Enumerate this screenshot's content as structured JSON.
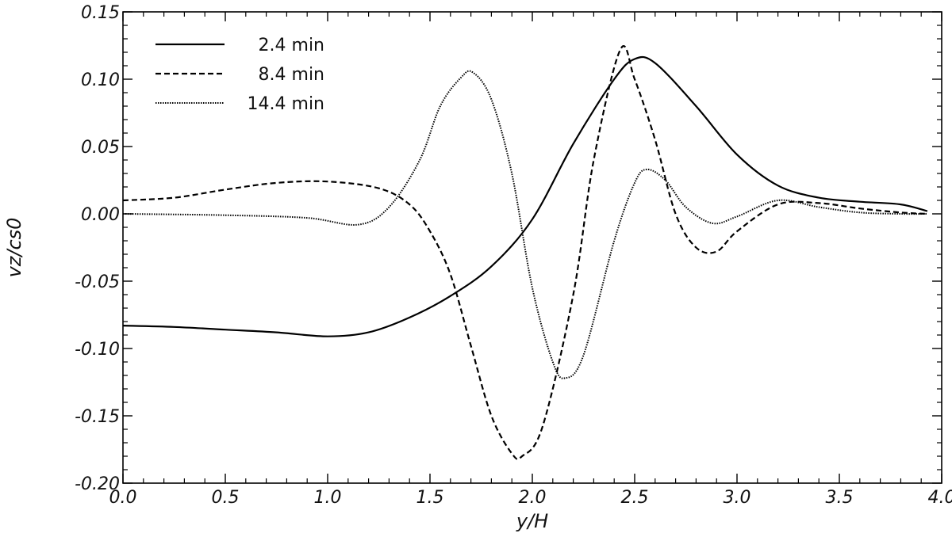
{
  "chart_data": {
    "type": "line",
    "title": "",
    "xlabel": "y/H",
    "ylabel": "vz/cs0",
    "xlim": [
      0.0,
      4.0
    ],
    "ylim": [
      -0.2,
      0.15
    ],
    "xticks": [
      "0.0",
      "0.5",
      "1.0",
      "1.5",
      "2.0",
      "2.5",
      "3.0",
      "3.5",
      "4.0"
    ],
    "yticks": [
      "-0.20",
      "-0.15",
      "-0.10",
      "-0.05",
      "0.00",
      "0.05",
      "0.10",
      "0.15"
    ],
    "grid": false,
    "legend_position": "top-left",
    "series": [
      {
        "name": "2.4 min",
        "style": "solid",
        "x": [
          0.0,
          0.25,
          0.5,
          0.75,
          1.0,
          1.2,
          1.4,
          1.6,
          1.8,
          2.0,
          2.2,
          2.4,
          2.5,
          2.6,
          2.8,
          3.0,
          3.2,
          3.4,
          3.6,
          3.8,
          3.93
        ],
        "y": [
          -0.083,
          -0.084,
          -0.086,
          -0.088,
          -0.091,
          -0.088,
          -0.077,
          -0.061,
          -0.039,
          -0.004,
          0.052,
          0.1,
          0.115,
          0.112,
          0.08,
          0.044,
          0.021,
          0.012,
          0.009,
          0.007,
          0.002
        ]
      },
      {
        "name": "8.4 min",
        "style": "dashed",
        "x": [
          0.0,
          0.25,
          0.5,
          0.75,
          1.0,
          1.25,
          1.4,
          1.5,
          1.6,
          1.7,
          1.8,
          1.9,
          1.95,
          2.05,
          2.2,
          2.3,
          2.43,
          2.5,
          2.6,
          2.7,
          2.8,
          2.9,
          3.0,
          3.2,
          3.4,
          3.6,
          3.8,
          3.93
        ],
        "y": [
          0.01,
          0.012,
          0.018,
          0.023,
          0.024,
          0.019,
          0.007,
          -0.013,
          -0.045,
          -0.098,
          -0.15,
          -0.178,
          -0.18,
          -0.158,
          -0.06,
          0.04,
          0.122,
          0.1,
          0.055,
          0.0,
          -0.025,
          -0.028,
          -0.013,
          0.007,
          0.008,
          0.004,
          0.001,
          0.0
        ]
      },
      {
        "name": "14.4 min",
        "style": "dotted",
        "x": [
          0.0,
          0.5,
          0.9,
          1.15,
          1.3,
          1.45,
          1.55,
          1.65,
          1.71,
          1.8,
          1.9,
          2.0,
          2.1,
          2.16,
          2.25,
          2.4,
          2.5,
          2.56,
          2.65,
          2.75,
          2.88,
          3.0,
          3.2,
          3.4,
          3.6,
          3.8,
          3.93
        ],
        "y": [
          0.0,
          -0.001,
          -0.003,
          -0.008,
          0.005,
          0.04,
          0.08,
          0.101,
          0.105,
          0.085,
          0.03,
          -0.055,
          -0.11,
          -0.122,
          -0.105,
          -0.02,
          0.023,
          0.033,
          0.025,
          0.005,
          -0.007,
          -0.002,
          0.01,
          0.005,
          0.001,
          0.0,
          0.0
        ]
      }
    ]
  }
}
